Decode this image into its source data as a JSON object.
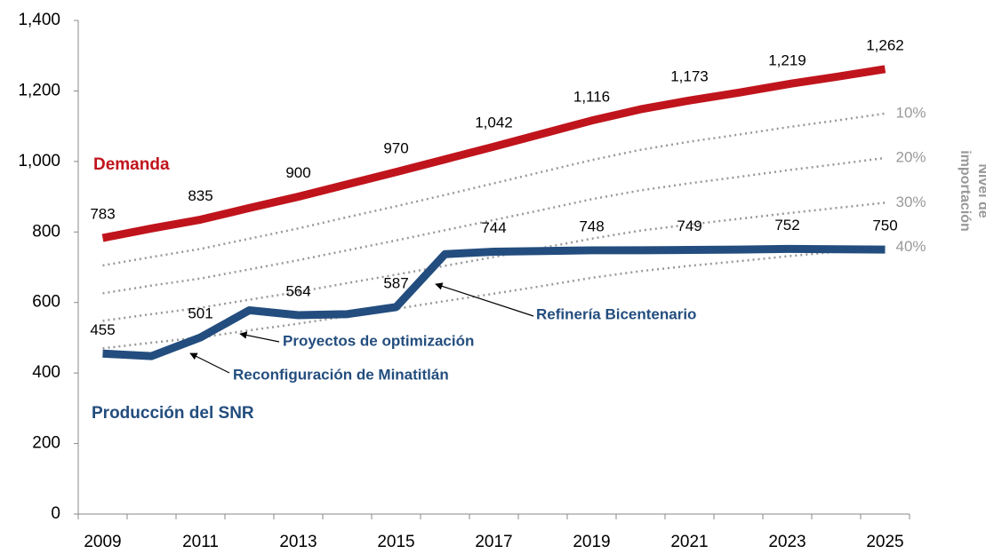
{
  "chart_data": {
    "type": "line",
    "categories": [
      "2009",
      null,
      "2011",
      null,
      "2013",
      null,
      "2015",
      null,
      "2017",
      null,
      "2019",
      null,
      "2021",
      null,
      "2023",
      null,
      "2025"
    ],
    "ylim": [
      0,
      1400
    ],
    "yticks": [
      0,
      200,
      400,
      600,
      800,
      {
        "value": 1000,
        "label": "1,000"
      },
      {
        "value": 1200,
        "label": "1,200"
      },
      {
        "value": 1400,
        "label": "1,400"
      }
    ],
    "y_axis_title": "Nivel de importación",
    "series": [
      {
        "name": "Demanda",
        "color": "#c0141c",
        "style": "solid",
        "values": [
          783,
          810,
          835,
          868,
          900,
          935,
          970,
          1006,
          1042,
          1079,
          1116,
          1148,
          1173,
          1195,
          1219,
          1240,
          1262
        ],
        "value_labels": [
          "783",
          null,
          "835",
          null,
          "900",
          null,
          "970",
          null,
          "1,042",
          null,
          "1,116",
          null,
          "1,173",
          null,
          "1,219",
          null,
          "1,262"
        ]
      },
      {
        "name": "Producción del SNR",
        "color": "#234d7e",
        "style": "solid",
        "values": [
          455,
          448,
          501,
          578,
          564,
          567,
          587,
          737,
          744,
          746,
          748,
          748,
          749,
          750,
          752,
          751,
          750
        ],
        "value_labels": [
          "455",
          null,
          "501",
          null,
          "564",
          null,
          "587",
          null,
          "744",
          null,
          "748",
          null,
          "749",
          null,
          "752",
          null,
          "750"
        ]
      },
      {
        "name": "10%",
        "color": "#999999",
        "style": "dotted",
        "values": [
          705,
          729,
          752,
          781,
          810,
          842,
          873,
          905,
          938,
          971,
          1004,
          1033,
          1056,
          1076,
          1097,
          1116,
          1136
        ]
      },
      {
        "name": "20%",
        "color": "#999999",
        "style": "dotted",
        "values": [
          626,
          648,
          668,
          694,
          720,
          748,
          776,
          805,
          834,
          863,
          893,
          918,
          938,
          956,
          975,
          992,
          1010
        ]
      },
      {
        "name": "30%",
        "color": "#999999",
        "style": "dotted",
        "values": [
          548,
          567,
          585,
          608,
          630,
          655,
          679,
          704,
          729,
          755,
          781,
          804,
          821,
          837,
          853,
          868,
          883
        ]
      },
      {
        "name": "40%",
        "color": "#999999",
        "style": "dotted",
        "values": [
          470,
          486,
          501,
          521,
          540,
          561,
          582,
          604,
          625,
          647,
          670,
          689,
          704,
          717,
          731,
          744,
          757
        ]
      }
    ],
    "annotations": [
      "Refinería Bicentenario",
      "Proyectos de optimización",
      "Reconfiguración de Minatitlán"
    ]
  }
}
